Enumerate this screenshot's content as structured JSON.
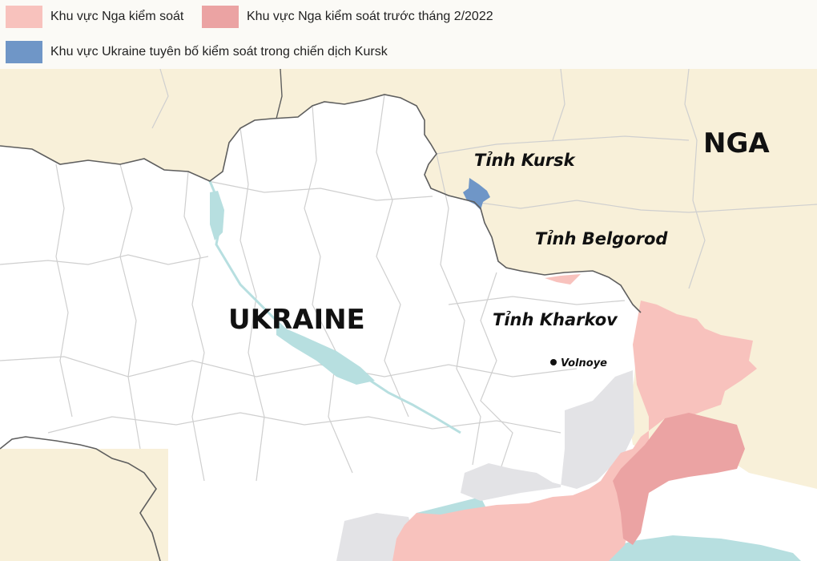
{
  "legend": {
    "items": [
      {
        "label": "Khu vực Nga kiểm soát",
        "color": "#f8c2bd"
      },
      {
        "label": "Khu vực Nga kiểm soát trước tháng 2/2022",
        "color": "#eba3a3"
      },
      {
        "label": "Khu vực Ukraine tuyên bố kiểm soát trong chiến dịch Kursk",
        "color": "#6f96c7"
      }
    ]
  },
  "map": {
    "labels": {
      "russia": "NGA",
      "ukraine": "UKRAINE",
      "kursk": "Tỉnh Kursk",
      "belgorod": "Tỉnh Belgorod",
      "kharkov": "Tỉnh Kharkov",
      "volnoye": "Volnoye"
    },
    "colors": {
      "russia_land": "#f8f0d9",
      "ukraine_land": "#ffffff",
      "water": "#b7dfe0",
      "gray_zone": "#e3e3e6",
      "border": "#5e5e5e",
      "region_line": "#cfcfcf"
    }
  }
}
